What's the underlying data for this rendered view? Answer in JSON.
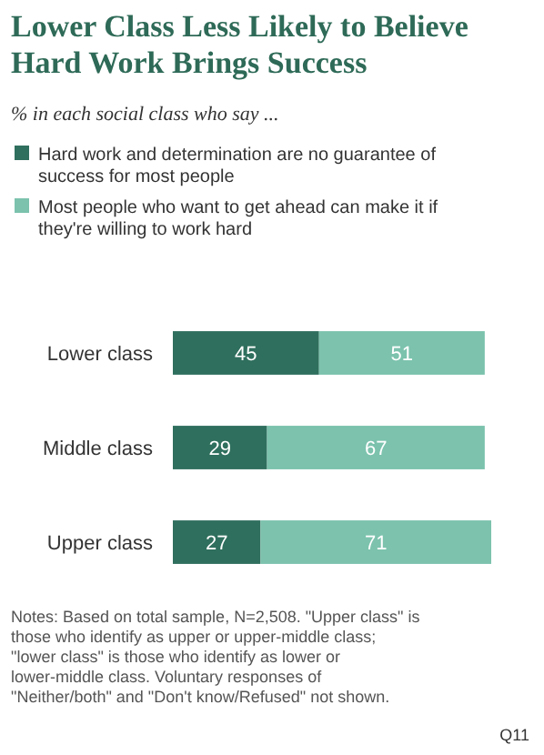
{
  "chart_data": {
    "type": "bar",
    "orientation": "horizontal",
    "stacked": true,
    "title": "Lower Class Less Likely to Believe Hard Work Brings Success",
    "subtitle": "% in each social class who say ...",
    "categories": [
      "Lower class",
      "Middle class",
      "Upper class"
    ],
    "series": [
      {
        "name": "Hard work and determination are no guarantee of success for most people",
        "color": "#2f6f5d",
        "values": [
          45,
          29,
          27
        ]
      },
      {
        "name": "Most people who want to get ahead can make it if they're willing to work hard",
        "color": "#7cc2ad",
        "values": [
          51,
          67,
          71
        ]
      }
    ],
    "data_labels": true,
    "legend": "top",
    "annotations": [
      "Notes: Based on total sample, N=2,508. \"Upper class\" is those who identify as upper or upper-middle class; \"lower class\" is those who identify as lower or lower-middle class. Voluntary responses of \"Neither/both\" and \"Don't know/Refused\" not shown.",
      "Q11"
    ]
  }
}
